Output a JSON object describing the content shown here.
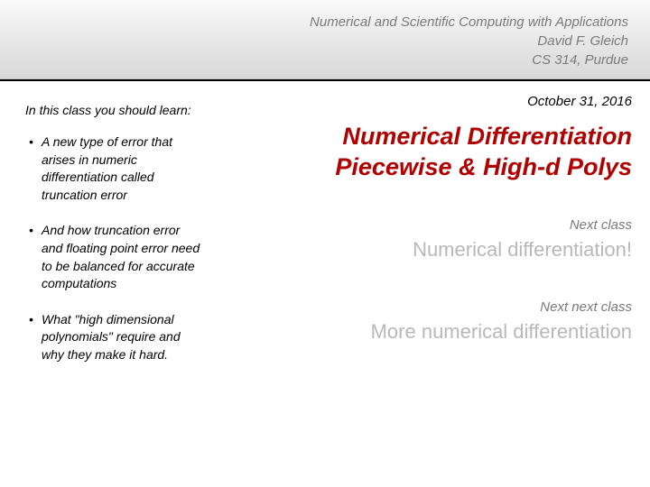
{
  "header": {
    "course_title": "Numerical and Scientific Computing with Applications",
    "instructor": "David F. Gleich",
    "course_code": "CS 314, Purdue"
  },
  "date": "October 31, 2016",
  "sidebar": {
    "heading": "In this class you should learn:",
    "items": [
      "A new type of error that arises in numeric differentiation called truncation error",
      "And how truncation error and floating point error need to be balanced for accurate computations",
      "What \"high dimensional polynomials\" require and why they make it hard."
    ]
  },
  "main": {
    "title_line1": "Numerical Differentiation",
    "title_line2": "Piecewise & High-d Polys",
    "next_class_label": "Next class",
    "next_class_topic": "Numerical differentiation!",
    "next_next_class_label": "Next next class",
    "next_next_class_topic": "More numerical differentiation"
  },
  "colors": {
    "title_color": "#b00000",
    "muted_text": "#7a7a7a",
    "faded_text": "#b8b8b8",
    "header_gradient_top": "#fafafa",
    "header_gradient_bottom": "#d8d8d8",
    "divider": "#000000"
  },
  "typography": {
    "title_fontsize": 27,
    "body_fontsize": 14,
    "date_fontsize": 15,
    "next_topic_fontsize": 22
  }
}
